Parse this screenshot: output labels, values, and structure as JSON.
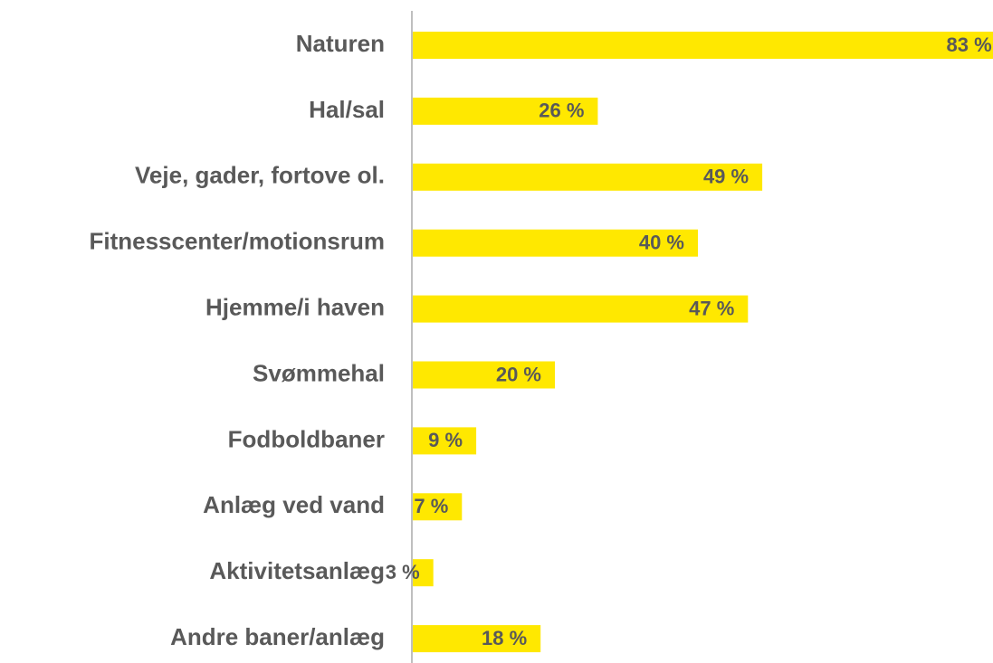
{
  "chart_data": {
    "type": "bar",
    "orientation": "horizontal",
    "categories": [
      "Naturen",
      "Hal/sal",
      "Veje, gader, fortove ol.",
      "Fitnesscenter/motionsrum",
      "Hjemme/i haven",
      "Svømmehal",
      "Fodboldbaner",
      "Anlæg ved vand",
      "Aktivitetsanlæg",
      "Andre baner/anlæg"
    ],
    "values": [
      83,
      26,
      49,
      40,
      47,
      20,
      9,
      7,
      3,
      18
    ],
    "value_labels": [
      "83 %",
      "26 %",
      "49 %",
      "40 %",
      "47 %",
      "20 %",
      "9 %",
      "7 %",
      "3 %",
      "18 %"
    ],
    "color": "#ffe800",
    "xlim": [
      0,
      80
    ]
  }
}
